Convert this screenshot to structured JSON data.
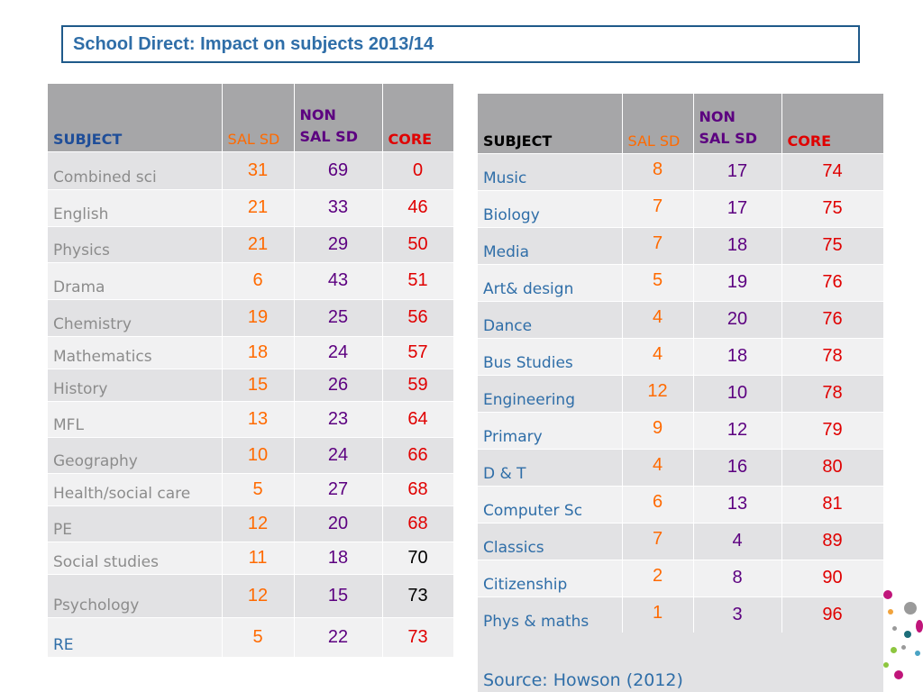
{
  "title": "School Direct: Impact on subjects 2013/14",
  "left_table": {
    "headers": {
      "subject": "SUBJECT",
      "sal": "SAL SD",
      "non_top": "NON",
      "non_bottom": "SAL SD",
      "core": "CORE"
    },
    "rows": [
      {
        "subject": "Combined sci",
        "sal": "31",
        "non": "69",
        "core": "0"
      },
      {
        "subject": "English",
        "sal": "21",
        "non": "33",
        "core": "46"
      },
      {
        "subject": "Physics",
        "sal": "21",
        "non": "29",
        "core": "50"
      },
      {
        "subject": "Drama",
        "sal": "6",
        "non": "43",
        "core": "51"
      },
      {
        "subject": "Chemistry",
        "sal": "19",
        "non": "25",
        "core": "56"
      },
      {
        "subject": "Mathematics",
        "sal": "18",
        "non": "24",
        "core": "57"
      },
      {
        "subject": "History",
        "sal": "15",
        "non": "26",
        "core": "59"
      },
      {
        "subject": "MFL",
        "sal": "13",
        "non": "23",
        "core": "64"
      },
      {
        "subject": "Geography",
        "sal": "10",
        "non": "24",
        "core": "66"
      },
      {
        "subject": "Health/social care",
        "sal": "5",
        "non": "27",
        "core": "68"
      },
      {
        "subject": "PE",
        "sal": "12",
        "non": "20",
        "core": "68"
      },
      {
        "subject": "Social studies",
        "sal": "11",
        "non": "18",
        "core": "70"
      },
      {
        "subject": "Psychology",
        "sal": "12",
        "non": "15",
        "core": "73"
      },
      {
        "subject": "RE",
        "sal": "5",
        "non": "22",
        "core": "73"
      }
    ]
  },
  "right_table": {
    "headers": {
      "subject": "SUBJECT",
      "sal": "SAL SD",
      "non_top": "NON",
      "non_bottom": "SAL SD",
      "core": "CORE"
    },
    "rows": [
      {
        "subject": "Music",
        "sal": "8",
        "non": "17",
        "core": "74"
      },
      {
        "subject": "Biology",
        "sal": "7",
        "non": "17",
        "core": "75"
      },
      {
        "subject": "Media",
        "sal": "7",
        "non": "18",
        "core": "75"
      },
      {
        "subject": "Art& design",
        "sal": "5",
        "non": "19",
        "core": "76"
      },
      {
        "subject": "Dance",
        "sal": "4",
        "non": "20",
        "core": "76"
      },
      {
        "subject": "Bus Studies",
        "sal": "4",
        "non": "18",
        "core": "78"
      },
      {
        "subject": "Engineering",
        "sal": "12",
        "non": "10",
        "core": "78"
      },
      {
        "subject": "Primary",
        "sal": "9",
        "non": "12",
        "core": "79"
      },
      {
        "subject": "D & T",
        "sal": "4",
        "non": "16",
        "core": "80"
      },
      {
        "subject": "Computer Sc",
        "sal": "6",
        "non": "13",
        "core": "81"
      },
      {
        "subject": "Classics",
        "sal": "7",
        "non": "4",
        "core": "89"
      },
      {
        "subject": "Citizenship",
        "sal": "2",
        "non": "8",
        "core": "90"
      },
      {
        "subject": "Phys & maths",
        "sal": "1",
        "non": "3",
        "core": "96"
      }
    ]
  },
  "source": "Source: Howson (2012)",
  "colors": {
    "title": "#2f6ea8",
    "title_border": "#1f5a8a",
    "header_bg": "#a6a6a8",
    "sal": "#ff6a00",
    "non_sal": "#5c0080",
    "core": "#e00000",
    "subject_grey": "#8c8c8c",
    "subject_blue": "#2f6ea8"
  }
}
